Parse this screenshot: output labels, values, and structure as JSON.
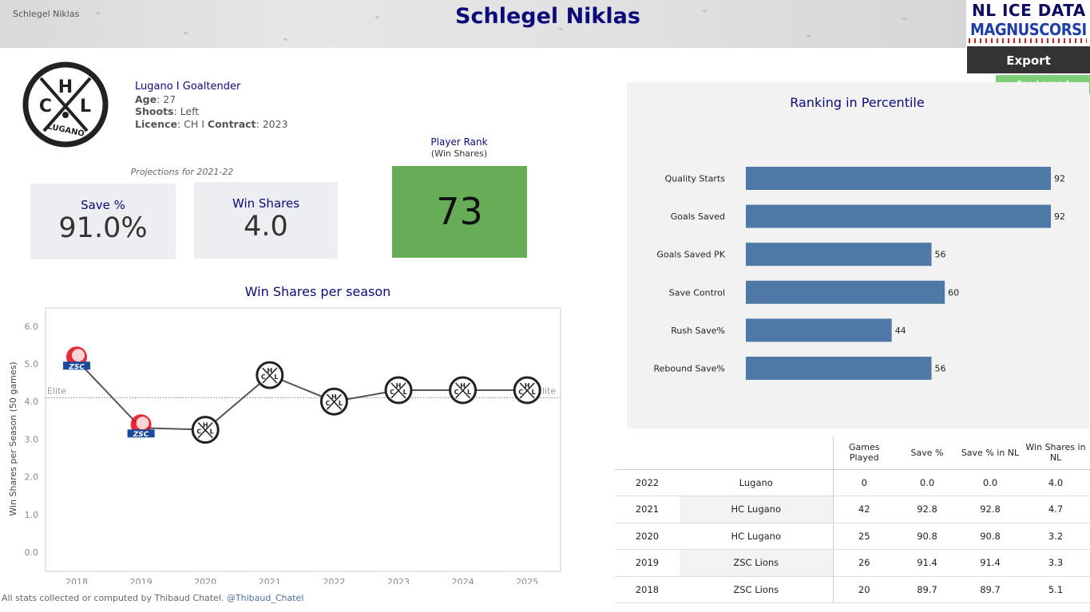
{
  "header": {
    "banner_name": "Schlegel Niklas",
    "title": "Schlegel Niklas",
    "brand_line1": "NL ICE DATA",
    "brand_line2": "MAGNUSCORSI"
  },
  "actions": {
    "export_label": "Export",
    "legend_label": "See Legend"
  },
  "player": {
    "team_line": "Lugano  I  Goaltender",
    "age_label": "Age",
    "age": "27",
    "shoots_label": "Shoots",
    "shoots": "Left",
    "licence_label": "Licence",
    "licence": "CH I",
    "contract_label": "Contract",
    "contract": "2023",
    "logo_letters": {
      "h": "H",
      "c": "C",
      "l": "L",
      "name": "LUGANO"
    }
  },
  "projections": {
    "label": "Projections for 2021-22",
    "save_pct_label": "Save %",
    "save_pct": "91.0%",
    "win_shares_label": "Win Shares",
    "win_shares": "4.0"
  },
  "rank": {
    "title": "Player Rank",
    "subtitle": "(Win Shares)",
    "value": "73"
  },
  "win_shares_chart": {
    "title": "Win Shares per season",
    "ylabel": "Win Shares per Season (50 games)",
    "elite_label": "Elite",
    "chart_data": {
      "type": "line",
      "x": [
        "2018",
        "2019",
        "2020",
        "2021",
        "2022",
        "2023",
        "2024",
        "2025"
      ],
      "values": [
        5.1,
        3.3,
        3.25,
        4.7,
        4.0,
        4.3,
        4.3,
        4.3
      ],
      "teams": [
        "ZSC Lions",
        "ZSC Lions",
        "HC Lugano",
        "HC Lugano",
        "Lugano",
        "Lugano",
        "Lugano",
        "Lugano"
      ],
      "ylim": [
        0,
        6.5
      ],
      "yticks": [
        "0.0",
        "1.0",
        "2.0",
        "3.0",
        "4.0",
        "5.0",
        "6.0"
      ],
      "elite_threshold": 4.1,
      "grid": false,
      "colors": {
        "line": "#555555",
        "elite": "#888888",
        "zsc_red": "#e30613",
        "zsc_blue": "#1a4a9c"
      }
    }
  },
  "percentile_chart": {
    "title": "Ranking in Percentile",
    "chart_data": {
      "type": "bar",
      "orientation": "horizontal",
      "categories": [
        "Quality Starts",
        "Goals Saved",
        "Goals Saved PK",
        "Save Control",
        "Rush Save%",
        "Rebound Save%"
      ],
      "values": [
        92,
        92,
        56,
        60,
        44,
        56
      ],
      "xlim": [
        0,
        92
      ],
      "color": "#4e79a7"
    }
  },
  "stats_table": {
    "headers": [
      "",
      "",
      "Games Played",
      "Save %",
      "Save % in NL",
      "Win Shares in NL"
    ],
    "rows": [
      {
        "year": "2022",
        "team": "Lugano",
        "gp": "0",
        "sv": "0.0",
        "svnl": "0.0",
        "ws": "4.0"
      },
      {
        "year": "2021",
        "team": "HC Lugano",
        "gp": "42",
        "sv": "92.8",
        "svnl": "92.8",
        "ws": "4.7"
      },
      {
        "year": "2020",
        "team": "HC Lugano",
        "gp": "25",
        "sv": "90.8",
        "svnl": "90.8",
        "ws": "3.2"
      },
      {
        "year": "2019",
        "team": "ZSC Lions",
        "gp": "26",
        "sv": "91.4",
        "svnl": "91.4",
        "ws": "3.3"
      },
      {
        "year": "2018",
        "team": "ZSC Lions",
        "gp": "20",
        "sv": "89.7",
        "svnl": "89.7",
        "ws": "5.1"
      }
    ]
  },
  "footer": {
    "text": "All stats collected or computed by Thibaud Chatel.",
    "handle": "@Thibaud_Chatel"
  }
}
